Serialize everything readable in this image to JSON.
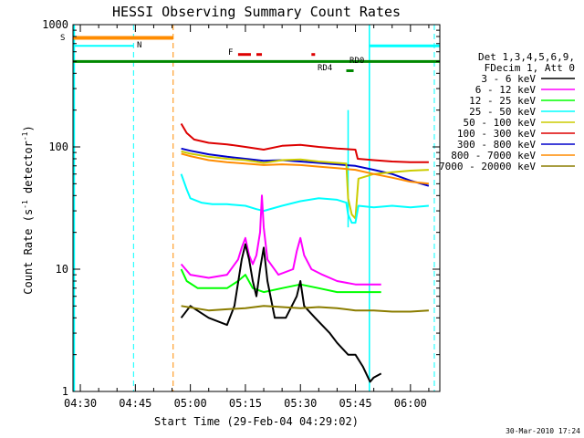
{
  "chart_data": {
    "type": "line",
    "title": "HESSI Observing Summary Count Rates",
    "xlabel": "Start Time (29-Feb-04 04:29:02)",
    "ylabel_main": "Count Rate (s",
    "ylabel_sup1": "-1",
    "ylabel_mid": " detector",
    "ylabel_sup2": "-1",
    "ylabel_end": ")",
    "yscale": "log",
    "ylim": [
      1,
      1000
    ],
    "xlim_minutes": [
      268,
      368
    ],
    "x_ticks": [
      {
        "t": 270,
        "label": "04:30"
      },
      {
        "t": 285,
        "label": "04:45"
      },
      {
        "t": 300,
        "label": "05:00"
      },
      {
        "t": 315,
        "label": "05:15"
      },
      {
        "t": 330,
        "label": "05:30"
      },
      {
        "t": 345,
        "label": "05:45"
      },
      {
        "t": 360,
        "label": "06:00"
      }
    ],
    "y_ticks": [
      {
        "v": 1,
        "label": "1"
      },
      {
        "v": 10,
        "label": "10"
      },
      {
        "v": 100,
        "label": "100"
      },
      {
        "v": 1000,
        "label": "1000"
      }
    ],
    "legend": {
      "header1": "Det 1,3,4,5,6,9,",
      "header2": "FDecim 1, Att 0",
      "entries": [
        {
          "label": "3 - 6 keV",
          "color": "#000000"
        },
        {
          "label": "6 - 12 keV",
          "color": "#ff00ff"
        },
        {
          "label": "12 - 25 keV",
          "color": "#00ff00"
        },
        {
          "label": "25 - 50 keV",
          "color": "#00ffff"
        },
        {
          "label": "50 - 100 keV",
          "color": "#cccc00"
        },
        {
          "label": "100 - 300 keV",
          "color": "#dd0000"
        },
        {
          "label": "300 - 800 keV",
          "color": "#0000cc"
        },
        {
          "label": "800 - 7000 keV",
          "color": "#ff8c00"
        },
        {
          "label": "7000 - 20000 keV",
          "color": "#8b7d00"
        }
      ]
    },
    "series": [
      {
        "name": "100 - 300 keV",
        "color": "#dd0000",
        "points": [
          [
            297.5,
            155
          ],
          [
            299,
            130
          ],
          [
            301,
            115
          ],
          [
            305,
            108
          ],
          [
            310,
            105
          ],
          [
            315,
            100
          ],
          [
            320,
            95
          ],
          [
            325,
            102
          ],
          [
            330,
            104
          ],
          [
            335,
            100
          ],
          [
            340,
            97
          ],
          [
            345,
            95
          ],
          [
            345.6,
            80
          ],
          [
            350,
            78
          ],
          [
            355,
            76
          ],
          [
            360,
            75
          ],
          [
            365,
            75
          ]
        ]
      },
      {
        "name": "300 - 800 keV",
        "color": "#0000cc",
        "points": [
          [
            297.5,
            97
          ],
          [
            300,
            93
          ],
          [
            305,
            87
          ],
          [
            310,
            83
          ],
          [
            315,
            80
          ],
          [
            320,
            77
          ],
          [
            325,
            78
          ],
          [
            330,
            76
          ],
          [
            335,
            74
          ],
          [
            340,
            72
          ],
          [
            345,
            70
          ],
          [
            350,
            65
          ],
          [
            355,
            60
          ],
          [
            360,
            53
          ],
          [
            365,
            48
          ]
        ]
      },
      {
        "name": "50 - 100 keV",
        "color": "#cccc00",
        "points": [
          [
            297.5,
            92
          ],
          [
            300,
            88
          ],
          [
            305,
            83
          ],
          [
            310,
            80
          ],
          [
            315,
            78
          ],
          [
            320,
            74
          ],
          [
            325,
            78
          ],
          [
            330,
            79
          ],
          [
            335,
            76
          ],
          [
            340,
            74
          ],
          [
            342.5,
            73
          ],
          [
            343,
            38
          ],
          [
            344,
            28
          ],
          [
            345,
            26
          ],
          [
            345.8,
            55
          ],
          [
            350,
            60
          ],
          [
            355,
            62
          ],
          [
            360,
            64
          ],
          [
            365,
            65
          ]
        ]
      },
      {
        "name": "800 - 7000 keV",
        "color": "#ff8c00",
        "points": [
          [
            297.5,
            88
          ],
          [
            300,
            84
          ],
          [
            305,
            78
          ],
          [
            310,
            75
          ],
          [
            315,
            73
          ],
          [
            320,
            71
          ],
          [
            325,
            72
          ],
          [
            330,
            71
          ],
          [
            335,
            69
          ],
          [
            340,
            67
          ],
          [
            345,
            65
          ],
          [
            350,
            60
          ],
          [
            355,
            56
          ],
          [
            360,
            52
          ],
          [
            365,
            50
          ]
        ]
      },
      {
        "name": "25 - 50 keV",
        "color": "#00ffff",
        "points": [
          [
            297.5,
            60
          ],
          [
            299,
            45
          ],
          [
            300,
            38
          ],
          [
            303,
            35
          ],
          [
            306,
            34
          ],
          [
            310,
            34
          ],
          [
            315,
            33
          ],
          [
            318,
            31
          ],
          [
            320,
            30
          ],
          [
            325,
            33
          ],
          [
            330,
            36
          ],
          [
            335,
            38
          ],
          [
            340,
            37
          ],
          [
            342.5,
            35
          ],
          [
            343,
            28
          ],
          [
            344,
            24
          ],
          [
            345,
            24
          ],
          [
            345.8,
            33
          ],
          [
            350,
            32
          ],
          [
            355,
            33
          ],
          [
            360,
            32
          ],
          [
            365,
            33
          ]
        ]
      },
      {
        "name": "6 - 12 keV",
        "color": "#ff00ff",
        "points": [
          [
            297.5,
            11
          ],
          [
            300,
            9
          ],
          [
            305,
            8.5
          ],
          [
            310,
            9
          ],
          [
            313,
            12
          ],
          [
            314,
            15
          ],
          [
            315,
            18
          ],
          [
            316,
            13
          ],
          [
            317,
            11
          ],
          [
            318,
            13
          ],
          [
            319,
            20
          ],
          [
            319.5,
            40
          ],
          [
            320,
            22
          ],
          [
            321,
            12
          ],
          [
            324,
            9
          ],
          [
            328,
            10
          ],
          [
            329,
            14
          ],
          [
            330,
            18
          ],
          [
            331,
            13
          ],
          [
            333,
            10
          ],
          [
            336,
            9
          ],
          [
            340,
            8
          ],
          [
            345,
            7.5
          ],
          [
            350,
            7.5
          ],
          [
            352,
            7.5
          ]
        ]
      },
      {
        "name": "12 - 25 keV",
        "color": "#00ff00",
        "points": [
          [
            297.5,
            10
          ],
          [
            299,
            8
          ],
          [
            302,
            7
          ],
          [
            306,
            7
          ],
          [
            310,
            7
          ],
          [
            313,
            8
          ],
          [
            315,
            9
          ],
          [
            317,
            7
          ],
          [
            320,
            6.5
          ],
          [
            325,
            7
          ],
          [
            330,
            7.5
          ],
          [
            335,
            7
          ],
          [
            340,
            6.5
          ],
          [
            345,
            6.5
          ],
          [
            350,
            6.5
          ],
          [
            352,
            6.5
          ]
        ]
      },
      {
        "name": "3 - 6 keV",
        "color": "#000000",
        "points": [
          [
            297.5,
            4
          ],
          [
            300,
            5
          ],
          [
            305,
            4
          ],
          [
            310,
            3.5
          ],
          [
            312,
            5
          ],
          [
            314,
            12
          ],
          [
            315,
            16
          ],
          [
            316,
            12
          ],
          [
            317,
            8
          ],
          [
            318,
            6
          ],
          [
            319,
            10
          ],
          [
            320,
            15
          ],
          [
            321,
            8
          ],
          [
            323,
            4
          ],
          [
            326,
            4
          ],
          [
            329,
            6
          ],
          [
            330,
            8
          ],
          [
            331,
            5
          ],
          [
            334,
            4
          ],
          [
            338,
            3
          ],
          [
            340,
            2.5
          ],
          [
            343,
            2
          ],
          [
            345,
            2
          ],
          [
            347,
            1.6
          ],
          [
            349,
            1.2
          ],
          [
            350,
            1.3
          ],
          [
            352,
            1.4
          ]
        ]
      },
      {
        "name": "7000 - 20000 keV",
        "color": "#8b7d00",
        "points": [
          [
            297.5,
            5
          ],
          [
            305,
            4.6
          ],
          [
            310,
            4.7
          ],
          [
            315,
            4.8
          ],
          [
            320,
            5
          ],
          [
            325,
            4.9
          ],
          [
            330,
            4.8
          ],
          [
            335,
            4.9
          ],
          [
            340,
            4.8
          ],
          [
            345,
            4.6
          ],
          [
            350,
            4.6
          ],
          [
            355,
            4.5
          ],
          [
            360,
            4.5
          ],
          [
            365,
            4.6
          ]
        ]
      }
    ],
    "markers": {
      "saa_label": "S",
      "night_label": "N",
      "flare_label": "F",
      "rd0_label": "RD0",
      "rd4_label": "RD4"
    }
  },
  "footer": {
    "date": "30-Mar-2010 17:24"
  }
}
